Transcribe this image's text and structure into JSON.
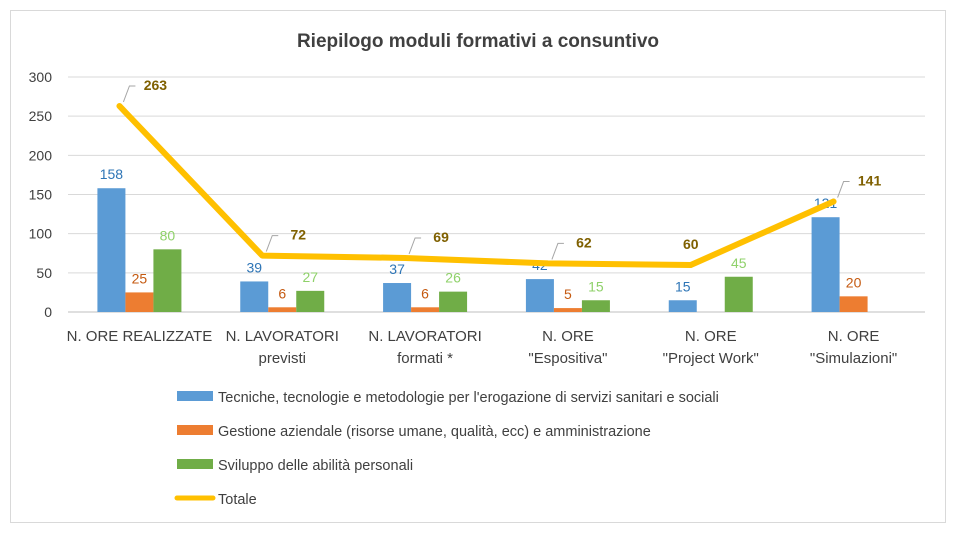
{
  "chart_data": {
    "type": "bar",
    "title": "Riepilogo moduli formativi a consuntivo",
    "ylim": [
      0,
      300
    ],
    "yticks": [
      0,
      50,
      100,
      150,
      200,
      250,
      300
    ],
    "grid": true,
    "legend_position": "bottom",
    "categories": [
      [
        "N. ORE REALIZZATE"
      ],
      [
        "N. LAVORATORI",
        "previsti"
      ],
      [
        "N. LAVORATORI",
        "formati *"
      ],
      [
        "N. ORE",
        "\"Espositiva\""
      ],
      [
        "N. ORE",
        "\"Project Work\""
      ],
      [
        "N. ORE",
        "\"Simulazioni\""
      ]
    ],
    "series": [
      {
        "name": "Tecniche, tecnologie e metodologie per l'erogazione di servizi sanitari e sociali",
        "kind": "bar",
        "color": "#5b9bd5",
        "label_color": "#2e75b6",
        "values": [
          158,
          39,
          37,
          42,
          15,
          121
        ],
        "labels": [
          "158",
          "39",
          "37",
          "42",
          "15",
          "121"
        ]
      },
      {
        "name": "Gestione aziendale (risorse umane, qualità,  ecc) e amministrazione",
        "kind": "bar",
        "color": "#ed7d31",
        "label_color": "#c55a11",
        "values": [
          25,
          6,
          6,
          5,
          0,
          20
        ],
        "labels": [
          "25",
          "6",
          "6",
          "5",
          "",
          "20"
        ]
      },
      {
        "name": "Sviluppo delle abilità personali",
        "kind": "bar",
        "color": "#70ad47",
        "label_color": "#8fd16a",
        "values": [
          80,
          27,
          26,
          15,
          45,
          0
        ],
        "labels": [
          "80",
          "27",
          "26",
          "15",
          "45",
          ""
        ]
      },
      {
        "name": "Totale",
        "kind": "line",
        "color": "#ffc000",
        "label_color": "#7f6000",
        "values": [
          263,
          72,
          69,
          62,
          60,
          141
        ],
        "labels": [
          "263",
          "72",
          "69",
          "62",
          "60",
          "141"
        ]
      }
    ]
  }
}
